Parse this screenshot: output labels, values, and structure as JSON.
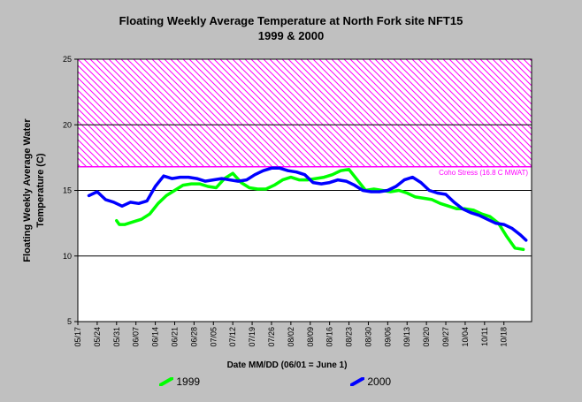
{
  "chart_data": {
    "type": "line",
    "title": "Floating Weekly Average Temperature at North Fork site NFT15",
    "subtitle": "1999 & 2000",
    "xlabel": "Date MM/DD (06/01 = June 1)",
    "ylabel": "Floating Weekly Average Water Temperature (C)",
    "ylim": [
      5,
      25
    ],
    "yticks": [
      5,
      10,
      15,
      20,
      25
    ],
    "x_tick_labels": [
      "05/17",
      "05/24",
      "05/31",
      "06/07",
      "06/14",
      "06/21",
      "06/28",
      "07/05",
      "07/12",
      "07/19",
      "07/26",
      "08/02",
      "08/09",
      "08/16",
      "08/23",
      "08/30",
      "09/06",
      "09/13",
      "09/20",
      "09/27",
      "10/04",
      "10/11",
      "10/18"
    ],
    "x_unit": "day of year",
    "xlim": [
      137,
      301
    ],
    "grid": "horizontal",
    "threshold": {
      "label": "Coho Stress (16.8 C MWAT)",
      "value": 16.8,
      "color": "#ff00ff"
    },
    "series": [
      {
        "name": "1999",
        "color": "#00ff00",
        "x": [
          151,
          152,
          154,
          157,
          160,
          163,
          166,
          169,
          172,
          175,
          178,
          181,
          184,
          187,
          190,
          193,
          196,
          199,
          202,
          205,
          208,
          211,
          214,
          217,
          220,
          223,
          226,
          229,
          232,
          235,
          238,
          241,
          244,
          247,
          250,
          253,
          256,
          259,
          262,
          265,
          268,
          271,
          274,
          277,
          280,
          283,
          286,
          289,
          292,
          295,
          298
        ],
        "values": [
          12.7,
          12.4,
          12.4,
          12.6,
          12.8,
          13.2,
          14.0,
          14.6,
          15.0,
          15.4,
          15.5,
          15.5,
          15.3,
          15.2,
          15.9,
          16.3,
          15.6,
          15.2,
          15.1,
          15.1,
          15.4,
          15.8,
          16.0,
          15.8,
          15.8,
          15.9,
          16.0,
          16.2,
          16.5,
          16.6,
          15.8,
          15.0,
          15.1,
          15.0,
          14.9,
          15.0,
          14.8,
          14.5,
          14.4,
          14.3,
          14.0,
          13.8,
          13.6,
          13.6,
          13.5,
          13.2,
          13.0,
          12.5,
          11.5,
          10.6,
          10.5
        ]
      },
      {
        "name": "2000",
        "color": "#0000ff",
        "x": [
          141,
          144,
          147,
          150,
          153,
          156,
          159,
          162,
          165,
          168,
          171,
          174,
          177,
          180,
          183,
          186,
          189,
          192,
          195,
          198,
          201,
          204,
          207,
          210,
          213,
          216,
          219,
          222,
          225,
          228,
          231,
          234,
          237,
          240,
          243,
          246,
          249,
          252,
          255,
          258,
          261,
          264,
          267,
          270,
          273,
          276,
          279,
          282,
          285,
          288,
          291,
          294,
          297,
          299
        ],
        "values": [
          14.6,
          14.9,
          14.3,
          14.1,
          13.8,
          14.1,
          14.0,
          14.2,
          15.3,
          16.1,
          15.9,
          16.0,
          16.0,
          15.9,
          15.7,
          15.8,
          15.9,
          15.8,
          15.7,
          15.8,
          16.2,
          16.5,
          16.7,
          16.7,
          16.5,
          16.4,
          16.2,
          15.6,
          15.5,
          15.6,
          15.8,
          15.7,
          15.4,
          15.0,
          14.9,
          14.9,
          15.0,
          15.3,
          15.8,
          16.0,
          15.6,
          15.0,
          14.8,
          14.7,
          14.1,
          13.6,
          13.3,
          13.1,
          12.8,
          12.5,
          12.4,
          12.1,
          11.6,
          11.2
        ]
      }
    ]
  }
}
